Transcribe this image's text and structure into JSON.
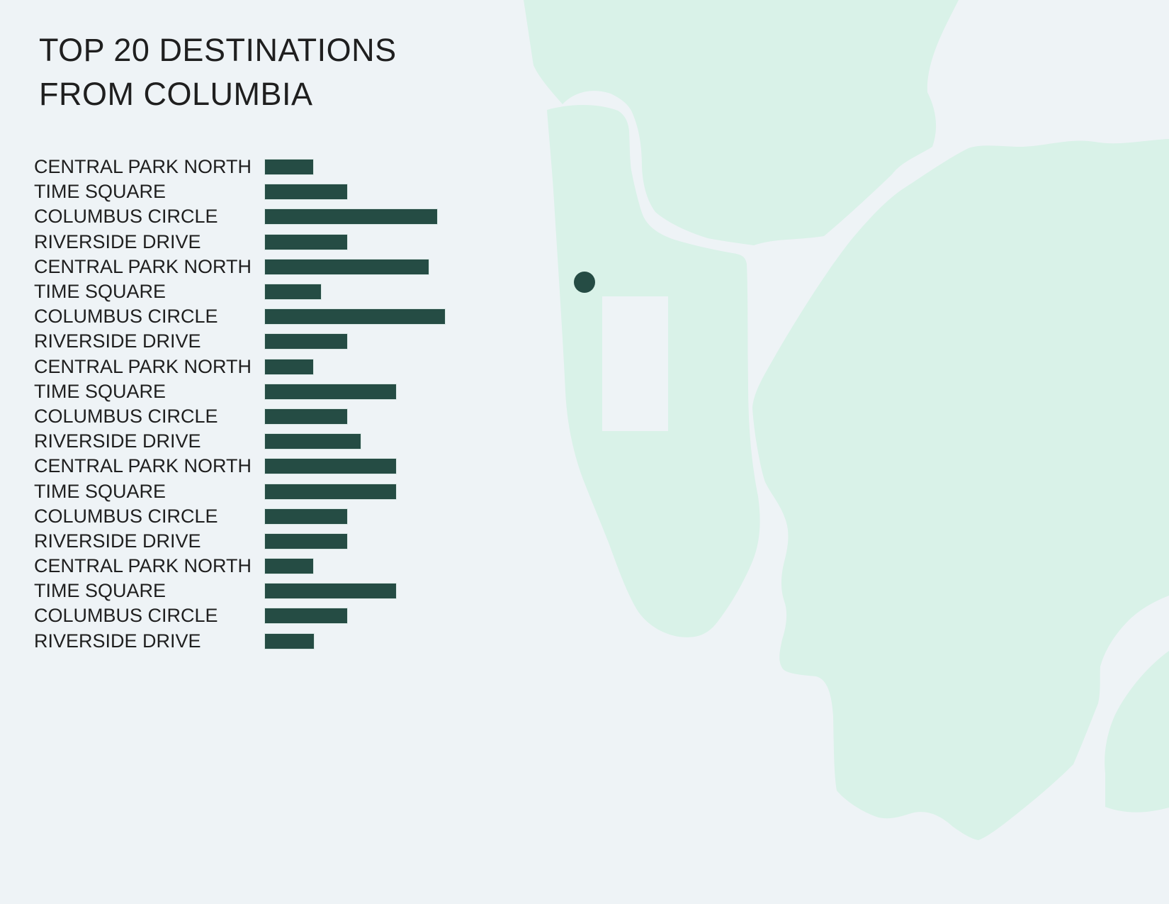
{
  "title": {
    "line1": "TOP 20 DESTINATIONS",
    "line2": "FROM COLUMBIA"
  },
  "chart_data": {
    "type": "bar",
    "orientation": "horizontal",
    "title": "TOP 20 DESTINATIONS FROM COLUMBIA",
    "value_axis": "none (no numeric axis or data labels are shown; values are relative bar lengths in px)",
    "grid": false,
    "legend": false,
    "categories": [
      "CENTRAL PARK NORTH",
      "TIME SQUARE",
      "COLUMBUS CIRCLE",
      "RIVERSIDE DRIVE",
      "CENTRAL PARK NORTH",
      "TIME SQUARE",
      "COLUMBUS CIRCLE",
      "RIVERSIDE DRIVE",
      "CENTRAL PARK NORTH",
      "TIME SQUARE",
      "COLUMBUS CIRCLE",
      "RIVERSIDE DRIVE",
      "CENTRAL PARK NORTH",
      "TIME SQUARE",
      "COLUMBUS CIRCLE",
      "RIVERSIDE DRIVE",
      "CENTRAL PARK NORTH",
      "TIME SQUARE",
      "COLUMBUS CIRCLE",
      "RIVERSIDE DRIVE"
    ],
    "values": [
      68,
      116,
      243,
      116,
      231,
      79,
      254,
      116,
      68,
      185,
      116,
      135,
      185,
      185,
      116,
      116,
      68,
      185,
      116,
      69
    ]
  },
  "map": {
    "marker": "origin-dot (Columbia location on Manhattan land mass)",
    "park_rectangle": "empty light rectangle on the strip (Central Park)"
  },
  "colors": {
    "background": "#eef3f6",
    "land": "#d9f2e8",
    "bar": "#254c44",
    "marker": "#254c44",
    "park": "#eef3f6",
    "text": "#1f1f1f"
  }
}
